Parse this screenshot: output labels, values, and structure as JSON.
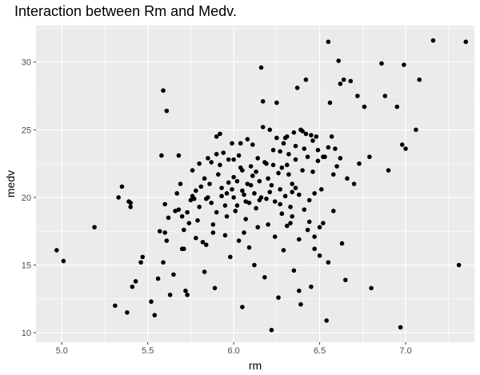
{
  "chart_data": {
    "type": "scatter",
    "title": "Interaction between Rm and Medv.",
    "xlabel": "rm",
    "ylabel": "medv",
    "xlim": [
      4.85,
      7.4
    ],
    "ylim": [
      9.3,
      32.7
    ],
    "xticks": [
      "5.0",
      "5.5",
      "6.0",
      "6.5",
      "7.0"
    ],
    "yticks": [
      "10",
      "15",
      "20",
      "25",
      "30"
    ],
    "grid": true,
    "colors": {
      "panel": "#ebebeb",
      "grid": "#ffffff",
      "point": "#000000"
    },
    "points": [
      [
        4.97,
        16.1
      ],
      [
        5.01,
        15.3
      ],
      [
        5.19,
        17.8
      ],
      [
        5.31,
        12.0
      ],
      [
        5.33,
        20.0
      ],
      [
        5.35,
        20.8
      ],
      [
        5.38,
        11.5
      ],
      [
        5.39,
        19.7
      ],
      [
        5.4,
        19.6
      ],
      [
        5.4,
        19.3
      ],
      [
        5.41,
        13.4
      ],
      [
        5.43,
        13.8
      ],
      [
        5.46,
        15.2
      ],
      [
        5.47,
        15.6
      ],
      [
        5.52,
        12.3
      ],
      [
        5.54,
        11.3
      ],
      [
        5.56,
        14.0
      ],
      [
        5.57,
        17.5
      ],
      [
        5.58,
        23.1
      ],
      [
        5.59,
        15.2
      ],
      [
        5.6,
        17.4
      ],
      [
        5.61,
        16.8
      ],
      [
        5.6,
        19.5
      ],
      [
        5.62,
        18.5
      ],
      [
        5.63,
        12.8
      ],
      [
        5.65,
        14.3
      ],
      [
        5.67,
        20.3
      ],
      [
        5.68,
        23.1
      ],
      [
        5.7,
        16.2
      ],
      [
        5.71,
        16.2
      ],
      [
        5.72,
        13.1
      ],
      [
        5.73,
        12.8
      ],
      [
        5.68,
        19.1
      ],
      [
        5.7,
        18.6
      ],
      [
        5.71,
        17.6
      ],
      [
        5.74,
        18.1
      ],
      [
        5.75,
        19.8
      ],
      [
        5.76,
        22.0
      ],
      [
        5.77,
        19.9
      ],
      [
        5.78,
        20.5
      ],
      [
        5.79,
        18.3
      ],
      [
        5.8,
        22.5
      ],
      [
        5.81,
        20.8
      ],
      [
        5.82,
        16.7
      ],
      [
        5.83,
        14.5
      ],
      [
        5.84,
        16.5
      ],
      [
        5.85,
        20.0
      ],
      [
        5.86,
        21.0
      ],
      [
        5.87,
        22.6
      ],
      [
        5.88,
        17.4
      ],
      [
        5.89,
        13.3
      ],
      [
        5.9,
        18.9
      ],
      [
        5.91,
        21.7
      ],
      [
        5.92,
        22.4
      ],
      [
        5.93,
        20.1
      ],
      [
        5.94,
        23.3
      ],
      [
        5.95,
        19.4
      ],
      [
        5.96,
        18.6
      ],
      [
        5.97,
        22.8
      ],
      [
        5.98,
        15.6
      ],
      [
        5.99,
        20.6
      ],
      [
        6.0,
        21.5
      ],
      [
        6.01,
        19.0
      ],
      [
        6.02,
        21.2
      ],
      [
        6.03,
        16.8
      ],
      [
        6.04,
        22.2
      ],
      [
        6.05,
        11.9
      ],
      [
        6.06,
        20.2
      ],
      [
        6.07,
        18.4
      ],
      [
        6.08,
        24.3
      ],
      [
        6.09,
        19.6
      ],
      [
        6.1,
        20.9
      ],
      [
        6.11,
        21.6
      ],
      [
        6.12,
        15.0
      ],
      [
        6.13,
        19.2
      ],
      [
        6.14,
        22.9
      ],
      [
        6.15,
        19.8
      ],
      [
        6.16,
        29.6
      ],
      [
        6.17,
        27.1
      ],
      [
        6.18,
        14.1
      ],
      [
        6.19,
        22.5
      ],
      [
        6.2,
        21.4
      ],
      [
        6.21,
        20.4
      ],
      [
        6.22,
        10.2
      ],
      [
        6.23,
        23.5
      ],
      [
        6.24,
        19.7
      ],
      [
        6.25,
        27.0
      ],
      [
        6.26,
        12.6
      ],
      [
        6.27,
        20.6
      ],
      [
        6.28,
        22.2
      ],
      [
        6.29,
        16.1
      ],
      [
        6.3,
        24.4
      ],
      [
        6.31,
        22.4
      ],
      [
        6.32,
        21.7
      ],
      [
        6.33,
        18.1
      ],
      [
        6.34,
        20.4
      ],
      [
        6.35,
        14.6
      ],
      [
        6.36,
        23.8
      ],
      [
        6.37,
        28.1
      ],
      [
        6.38,
        13.1
      ],
      [
        6.39,
        12.1
      ],
      [
        6.4,
        24.9
      ],
      [
        6.41,
        19.1
      ],
      [
        6.42,
        28.7
      ],
      [
        6.43,
        23.0
      ],
      [
        6.44,
        18.2
      ],
      [
        6.45,
        13.4
      ],
      [
        6.46,
        21.9
      ],
      [
        6.47,
        17.1
      ],
      [
        6.48,
        24.5
      ],
      [
        6.49,
        22.7
      ],
      [
        6.5,
        17.8
      ],
      [
        6.51,
        20.6
      ],
      [
        6.52,
        18.1
      ],
      [
        6.53,
        23.0
      ],
      [
        6.54,
        10.9
      ],
      [
        6.55,
        31.5
      ],
      [
        6.56,
        27.0
      ],
      [
        6.57,
        24.5
      ],
      [
        6.58,
        19.0
      ],
      [
        6.59,
        23.6
      ],
      [
        6.6,
        22.3
      ],
      [
        6.61,
        30.1
      ],
      [
        6.62,
        28.4
      ],
      [
        6.63,
        16.6
      ],
      [
        6.64,
        28.7
      ],
      [
        6.65,
        13.9
      ],
      [
        6.66,
        21.4
      ],
      [
        6.68,
        28.6
      ],
      [
        6.72,
        27.5
      ],
      [
        6.73,
        22.5
      ],
      [
        6.76,
        26.7
      ],
      [
        6.79,
        23.0
      ],
      [
        6.8,
        13.3
      ],
      [
        6.86,
        29.9
      ],
      [
        6.88,
        27.5
      ],
      [
        6.9,
        22.0
      ],
      [
        6.95,
        26.7
      ],
      [
        6.97,
        10.4
      ],
      [
        6.98,
        23.9
      ],
      [
        6.99,
        29.8
      ],
      [
        7.0,
        23.6
      ],
      [
        7.06,
        25.0
      ],
      [
        7.08,
        28.7
      ],
      [
        7.16,
        31.6
      ],
      [
        7.31,
        15.0
      ],
      [
        7.35,
        31.5
      ],
      [
        5.59,
        27.9
      ],
      [
        5.61,
        26.4
      ],
      [
        5.9,
        24.5
      ],
      [
        5.92,
        24.7
      ],
      [
        5.99,
        24.0
      ],
      [
        6.03,
        23.1
      ],
      [
        6.04,
        24.0
      ],
      [
        6.11,
        23.9
      ],
      [
        6.17,
        25.2
      ],
      [
        6.21,
        25.0
      ],
      [
        6.25,
        24.4
      ],
      [
        6.29,
        24.0
      ],
      [
        6.32,
        23.2
      ],
      [
        6.35,
        24.8
      ],
      [
        6.39,
        25.0
      ],
      [
        6.42,
        24.7
      ],
      [
        6.46,
        24.2
      ],
      [
        6.49,
        23.5
      ],
      [
        6.52,
        23.0
      ],
      [
        6.55,
        23.7
      ],
      [
        6.58,
        21.7
      ],
      [
        6.62,
        22.9
      ],
      [
        6.7,
        21.0
      ],
      [
        5.87,
        19.6
      ],
      [
        5.93,
        20.7
      ],
      [
        5.97,
        21.1
      ],
      [
        6.0,
        20.0
      ],
      [
        6.02,
        19.4
      ],
      [
        6.05,
        20.5
      ],
      [
        6.08,
        21.0
      ],
      [
        6.12,
        20.3
      ],
      [
        6.15,
        21.2
      ],
      [
        6.19,
        19.9
      ],
      [
        6.22,
        20.9
      ],
      [
        6.26,
        21.8
      ],
      [
        6.3,
        20.1
      ],
      [
        6.33,
        19.3
      ],
      [
        6.36,
        20.7
      ],
      [
        6.4,
        22.0
      ],
      [
        6.44,
        19.8
      ],
      [
        6.47,
        20.3
      ],
      [
        5.83,
        21.4
      ],
      [
        5.88,
        18.0
      ],
      [
        5.95,
        17.2
      ],
      [
        6.06,
        17.4
      ],
      [
        6.09,
        16.3
      ],
      [
        6.14,
        17.8
      ],
      [
        6.2,
        18.0
      ],
      [
        6.24,
        17.1
      ],
      [
        6.28,
        18.8
      ],
      [
        6.31,
        17.9
      ],
      [
        6.34,
        18.6
      ],
      [
        6.38,
        16.9
      ],
      [
        6.43,
        17.6
      ],
      [
        6.47,
        16.2
      ],
      [
        6.5,
        15.7
      ],
      [
        6.55,
        15.2
      ],
      [
        5.78,
        17.0
      ],
      [
        5.73,
        18.9
      ],
      [
        5.8,
        19.3
      ],
      [
        5.85,
        22.9
      ],
      [
        5.9,
        23.2
      ],
      [
        6.0,
        22.8
      ],
      [
        6.05,
        22.0
      ],
      [
        6.1,
        22.3
      ],
      [
        6.13,
        21.9
      ],
      [
        6.18,
        22.6
      ],
      [
        6.23,
        22.4
      ],
      [
        6.27,
        23.4
      ],
      [
        6.31,
        24.5
      ],
      [
        6.36,
        22.8
      ],
      [
        6.41,
        23.6
      ],
      [
        6.45,
        24.6
      ],
      [
        6.38,
        20.2
      ],
      [
        6.34,
        21.0
      ],
      [
        6.27,
        19.5
      ],
      [
        6.16,
        20.0
      ],
      [
        6.07,
        19.7
      ],
      [
        5.96,
        20.3
      ],
      [
        5.84,
        19.9
      ],
      [
        5.76,
        20.1
      ],
      [
        5.69,
        21.0
      ],
      [
        5.66,
        19.0
      ]
    ]
  }
}
